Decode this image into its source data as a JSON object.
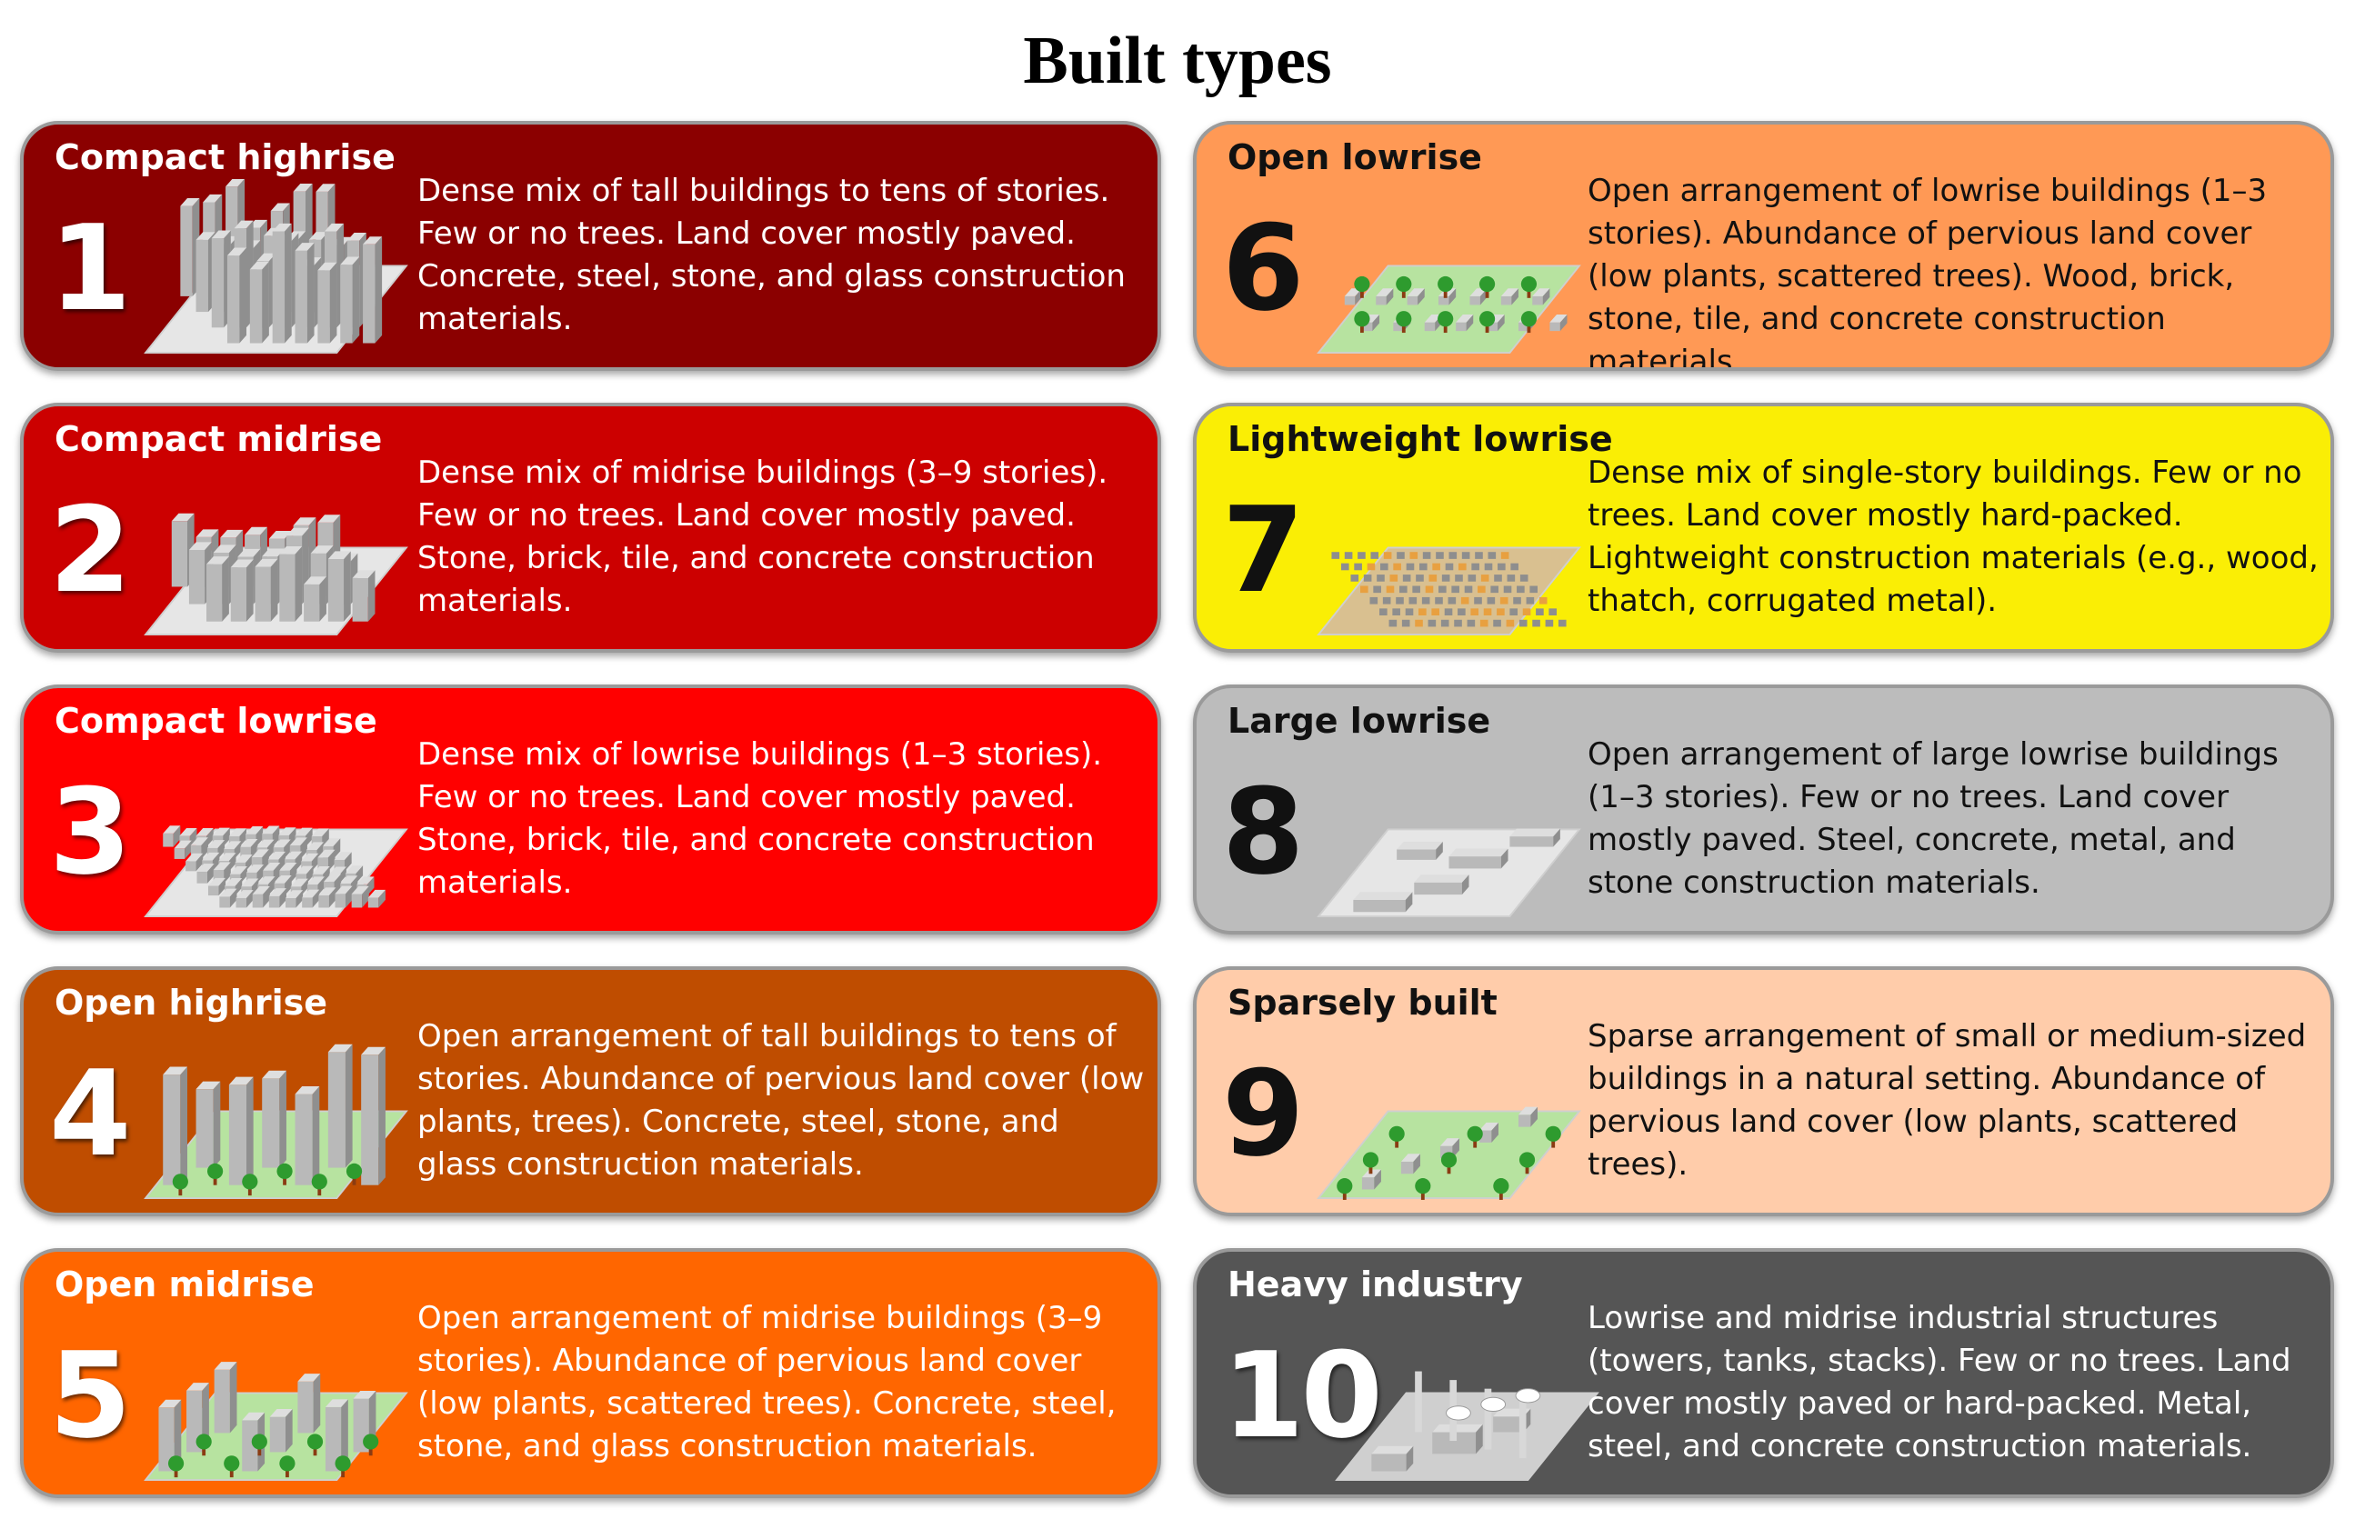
{
  "title": "Built types",
  "cards": [
    {
      "number": "1",
      "name": "Compact highrise",
      "description": "Dense mix of tall buildings to tens of stories. Few or no trees. Land cover mostly paved. Concrete, steel, stone, and glass construction materials.",
      "color": "#8b0000",
      "text_color": "#ffffff",
      "icon": "compact-highrise-icon"
    },
    {
      "number": "2",
      "name": "Compact midrise",
      "description": "Dense mix of midrise buildings (3–9 stories). Few or no trees. Land cover mostly paved. Stone, brick, tile, and concrete construction materials.",
      "color": "#cc0000",
      "text_color": "#ffffff",
      "icon": "compact-midrise-icon"
    },
    {
      "number": "3",
      "name": "Compact lowrise",
      "description": "Dense mix of lowrise buildings (1–3 stories). Few or no trees. Land cover mostly paved. Stone, brick, tile, and concrete construction materials.",
      "color": "#ff0000",
      "text_color": "#ffffff",
      "icon": "compact-lowrise-icon"
    },
    {
      "number": "4",
      "name": "Open highrise",
      "description": "Open arrangement of tall buildings to tens of stories. Abundance of pervious land cover (low plants, trees). Concrete, steel, stone, and glass construction materials.",
      "color": "#bf4d00",
      "text_color": "#ffffff",
      "icon": "open-highrise-icon"
    },
    {
      "number": "5",
      "name": "Open midrise",
      "description": "Open arrangement of midrise buildings (3–9 stories). Abundance of pervious land cover (low plants, scattered trees). Concrete, steel, stone, and glass construction materials.",
      "color": "#ff6600",
      "text_color": "#ffffff",
      "icon": "open-midrise-icon"
    },
    {
      "number": "6",
      "name": "Open lowrise",
      "description": "Open arrangement of lowrise buildings (1–3 stories). Abundance of pervious land cover (low plants, scattered trees). Wood, brick, stone, tile, and concrete construction materials.",
      "color": "#ff9955",
      "text_color": "#111111",
      "icon": "open-lowrise-icon"
    },
    {
      "number": "7",
      "name": "Lightweight lowrise",
      "description": "Dense mix of single-story buildings. Few or no trees. Land cover mostly hard-packed. Lightweight construction materials (e.g., wood, thatch, corrugated metal).",
      "color": "#faee05",
      "text_color": "#111111",
      "icon": "lightweight-lowrise-icon"
    },
    {
      "number": "8",
      "name": "Large lowrise",
      "description": "Open arrangement of large lowrise buildings (1–3 stories). Few or no trees. Land cover mostly paved. Steel, concrete, metal, and stone construction materials.",
      "color": "#bcbcbc",
      "text_color": "#111111",
      "icon": "large-lowrise-icon"
    },
    {
      "number": "9",
      "name": "Sparsely built",
      "description": "Sparse arrangement of small or medium-sized buildings in a natural setting. Abundance of pervious land cover (low plants, scattered trees).",
      "color": "#ffccaa",
      "text_color": "#111111",
      "icon": "sparsely-built-icon"
    },
    {
      "number": "10",
      "name": "Heavy industry",
      "description": "Lowrise and midrise industrial structures (towers, tanks, stacks). Few or no trees. Land cover mostly paved or hard-packed. Metal, steel, and concrete construction materials.",
      "color": "#555555",
      "text_color": "#ffffff",
      "icon": "heavy-industry-icon"
    }
  ]
}
